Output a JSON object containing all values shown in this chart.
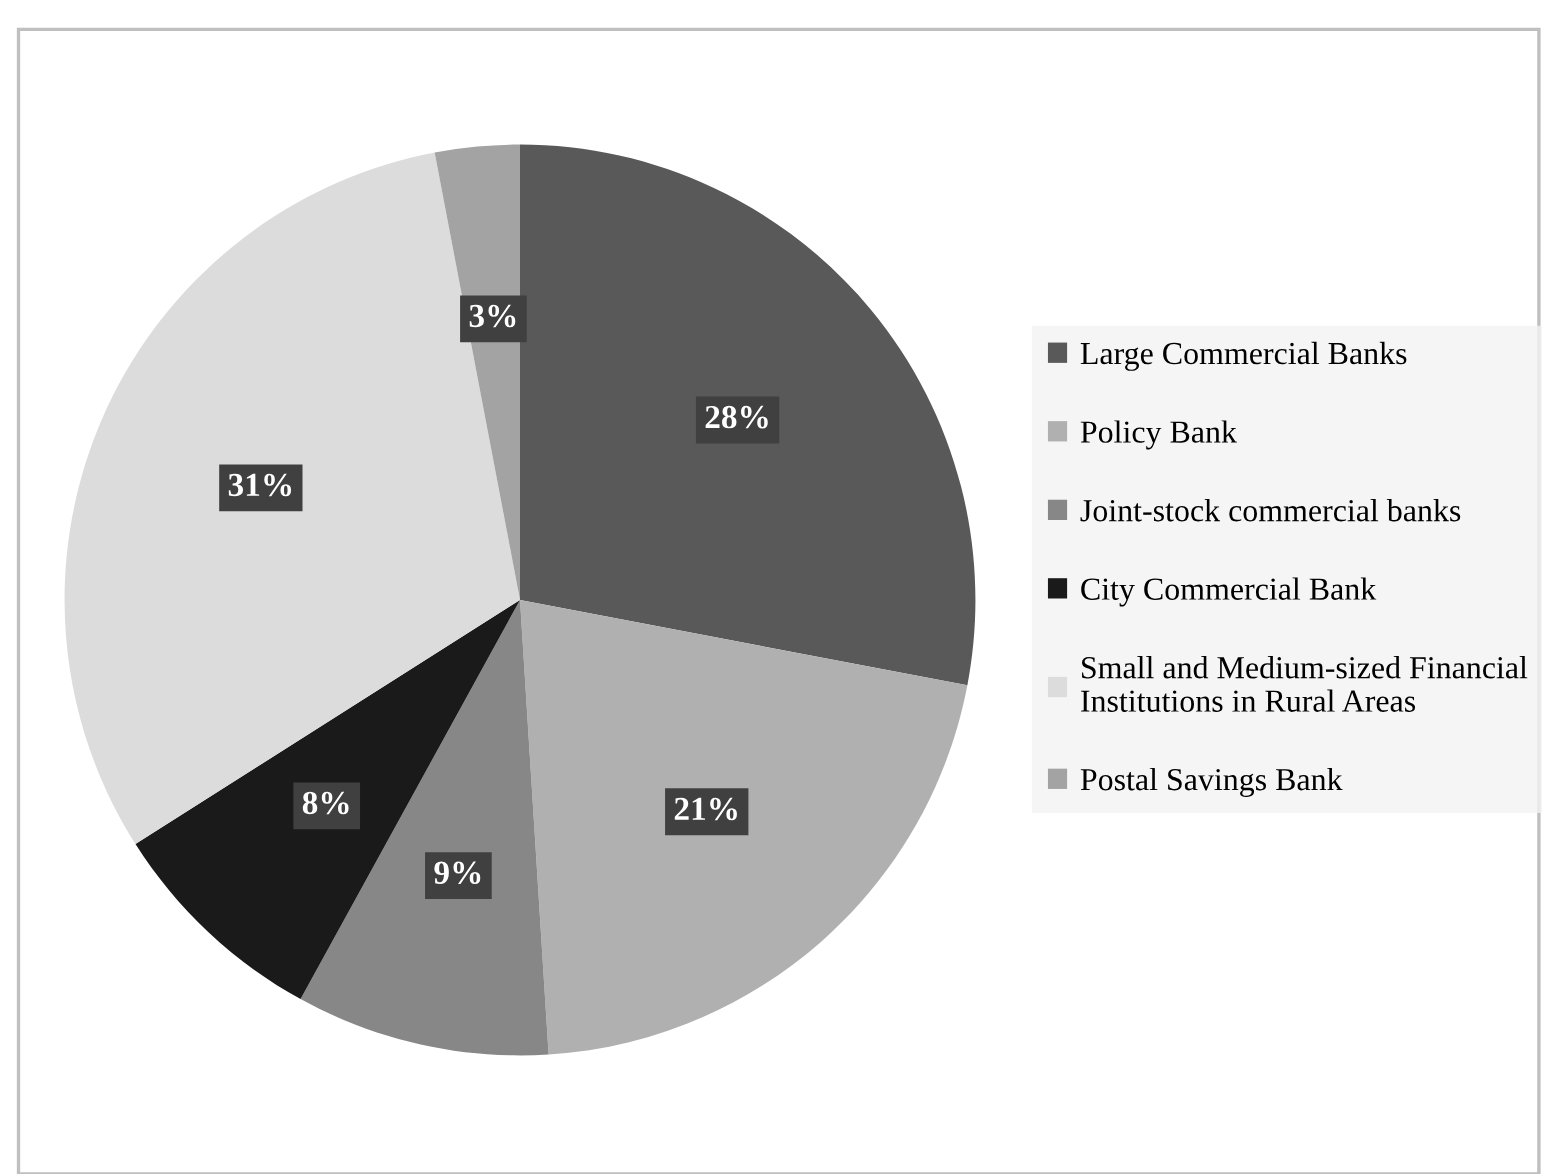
{
  "chart_data": {
    "type": "pie",
    "categories": [
      "Large Commercial Banks",
      "Policy Bank",
      "Joint-stock commercial banks",
      "City Commercial Bank",
      "Small and Medium-sized Financial Institutions in Rural Areas",
      "Postal Savings Bank"
    ],
    "values": [
      28,
      21,
      9,
      8,
      31,
      3
    ],
    "value_labels": [
      "28%",
      "21%",
      "9%",
      "8%",
      "31%",
      "3%"
    ],
    "colors": [
      "#595959",
      "#b0b0b0",
      "#878787",
      "#1a1a1a",
      "#dcdcdc",
      "#a3a3a3"
    ],
    "legend": "right"
  }
}
